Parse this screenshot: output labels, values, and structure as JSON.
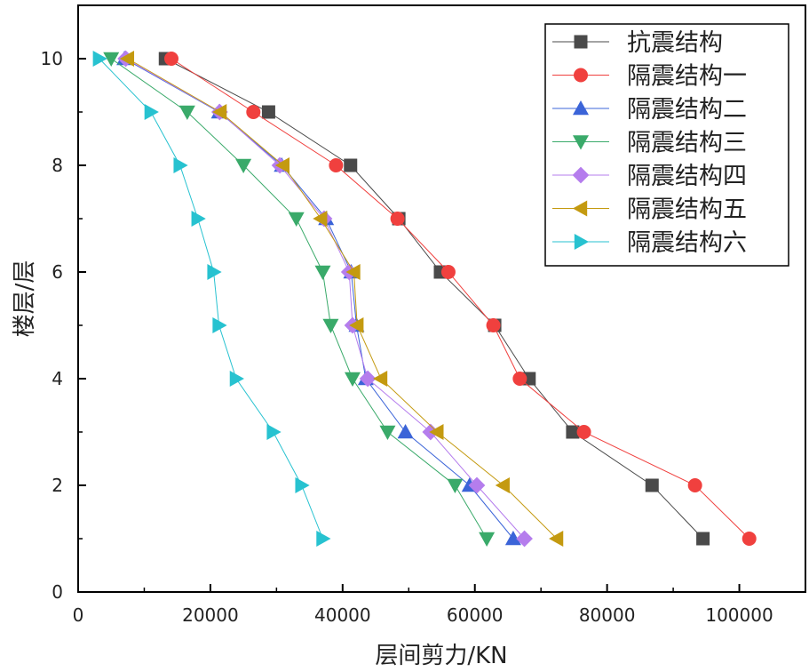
{
  "chart_data": {
    "type": "line",
    "title": "",
    "xlabel": "层间剪力/KN",
    "ylabel": "楼层/层",
    "xlim": [
      0,
      110000
    ],
    "ylim": [
      0,
      11
    ],
    "x_ticks": [
      0,
      20000,
      40000,
      60000,
      80000,
      100000
    ],
    "x_tick_labels": [
      "0",
      "20000",
      "40000",
      "60000",
      "80000",
      "100000"
    ],
    "y_ticks": [
      0,
      2,
      4,
      6,
      8,
      10
    ],
    "y_tick_labels": [
      "0",
      "2",
      "4",
      "6",
      "8",
      "10"
    ],
    "legend_position": "top-right",
    "y": [
      1,
      2,
      3,
      4,
      5,
      6,
      7,
      8,
      9,
      10
    ],
    "series": [
      {
        "name": "抗震结构",
        "color": "#4a4a4a",
        "marker": "square",
        "x": [
          94500,
          86800,
          74800,
          68200,
          63000,
          54800,
          48500,
          41200,
          28800,
          13200
        ]
      },
      {
        "name": "隔震结构一",
        "color": "#f0403e",
        "marker": "circle",
        "x": [
          101500,
          93300,
          76500,
          66800,
          62800,
          56000,
          48300,
          39000,
          26500,
          14100
        ]
      },
      {
        "name": "隔震结构二",
        "color": "#3b64d8",
        "marker": "triangle-up",
        "x": [
          65800,
          59200,
          49500,
          43500,
          42100,
          41300,
          37500,
          30800,
          21300,
          7000
        ]
      },
      {
        "name": "隔震结构三",
        "color": "#3aaa6a",
        "marker": "triangle-down",
        "x": [
          61800,
          57000,
          46800,
          41500,
          38200,
          37000,
          33000,
          25000,
          16500,
          5000
        ]
      },
      {
        "name": "隔震结构四",
        "color": "#b57ded",
        "marker": "diamond",
        "x": [
          67500,
          60300,
          53300,
          43800,
          41500,
          41000,
          37200,
          30500,
          21400,
          7200
        ]
      },
      {
        "name": "隔震结构五",
        "color": "#c49a10",
        "marker": "triangle-left",
        "x": [
          72400,
          64300,
          54300,
          45800,
          42200,
          41700,
          36700,
          31000,
          21500,
          7500
        ]
      },
      {
        "name": "隔震结构六",
        "color": "#27c2d0",
        "marker": "triangle-right",
        "x": [
          37000,
          33800,
          29500,
          23900,
          21300,
          20500,
          18100,
          15400,
          11000,
          3200
        ]
      }
    ]
  }
}
